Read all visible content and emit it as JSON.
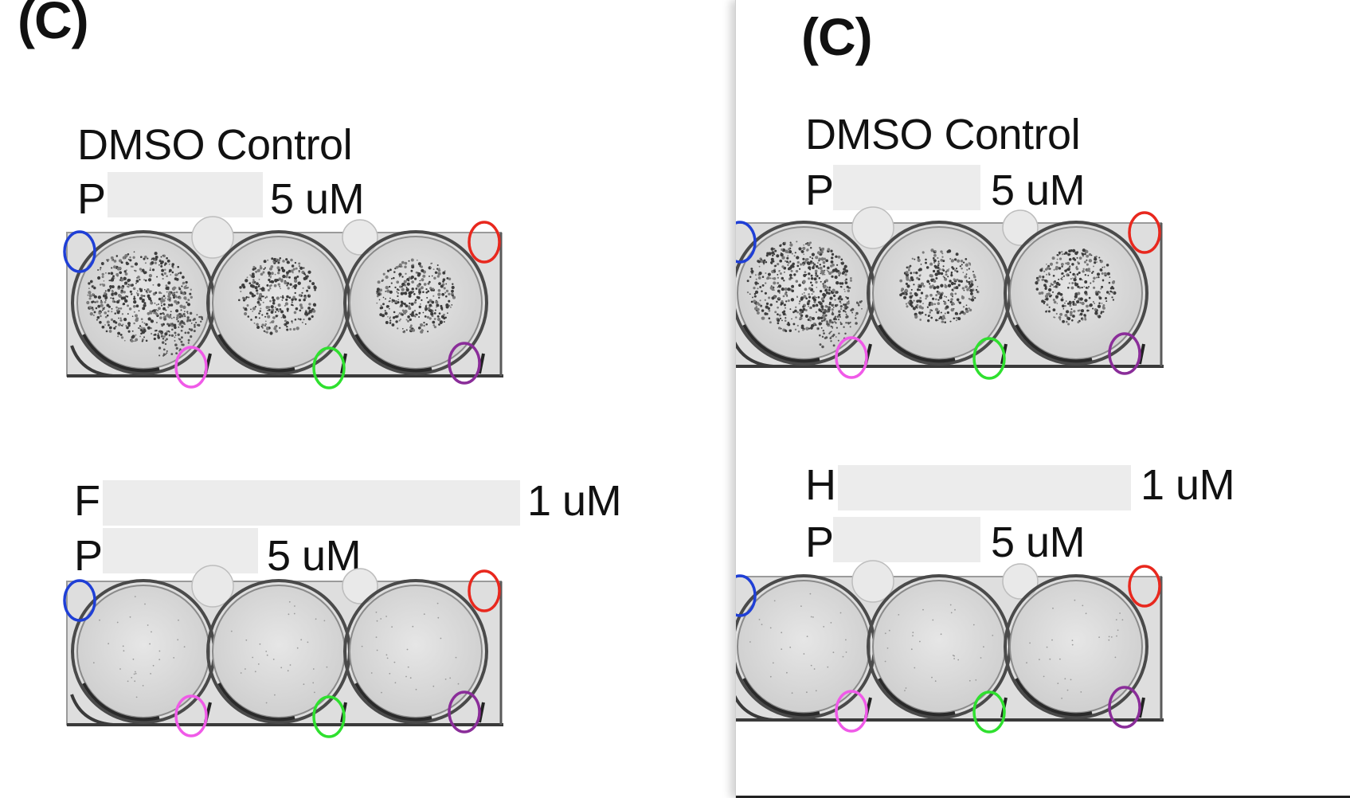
{
  "panels": [
    {
      "id": "left",
      "label": "(C)",
      "plates": [
        {
          "lines": [
            {
              "text": "DMSO Control"
            },
            {
              "prefix": "P",
              "suffix": "5 uM"
            }
          ],
          "wells": [
            "colonies",
            "colonies",
            "colonies"
          ]
        },
        {
          "lines": [
            {
              "prefix": "F",
              "suffix": "1 uM"
            },
            {
              "prefix": "P",
              "suffix": "5 uM"
            }
          ],
          "wells": [
            "clear",
            "clear",
            "clear"
          ]
        }
      ]
    },
    {
      "id": "right",
      "label": "(C)",
      "plates": [
        {
          "lines": [
            {
              "text": "DMSO Control"
            },
            {
              "prefix": "P",
              "suffix": "5 uM"
            }
          ],
          "wells": [
            "colonies",
            "colonies",
            "colonies"
          ]
        },
        {
          "lines": [
            {
              "prefix": "H",
              "suffix": "1 uM"
            },
            {
              "prefix": "P",
              "suffix": "5 uM"
            }
          ],
          "wells": [
            "clear",
            "clear",
            "clear"
          ]
        }
      ]
    }
  ],
  "marker_colors": {
    "top_left": "#1f3fd6",
    "top_right": "#e8281e",
    "bottom_left": "#f05ae8",
    "bottom_middle": "#2fe02f",
    "bottom_right": "#8a2d99"
  }
}
